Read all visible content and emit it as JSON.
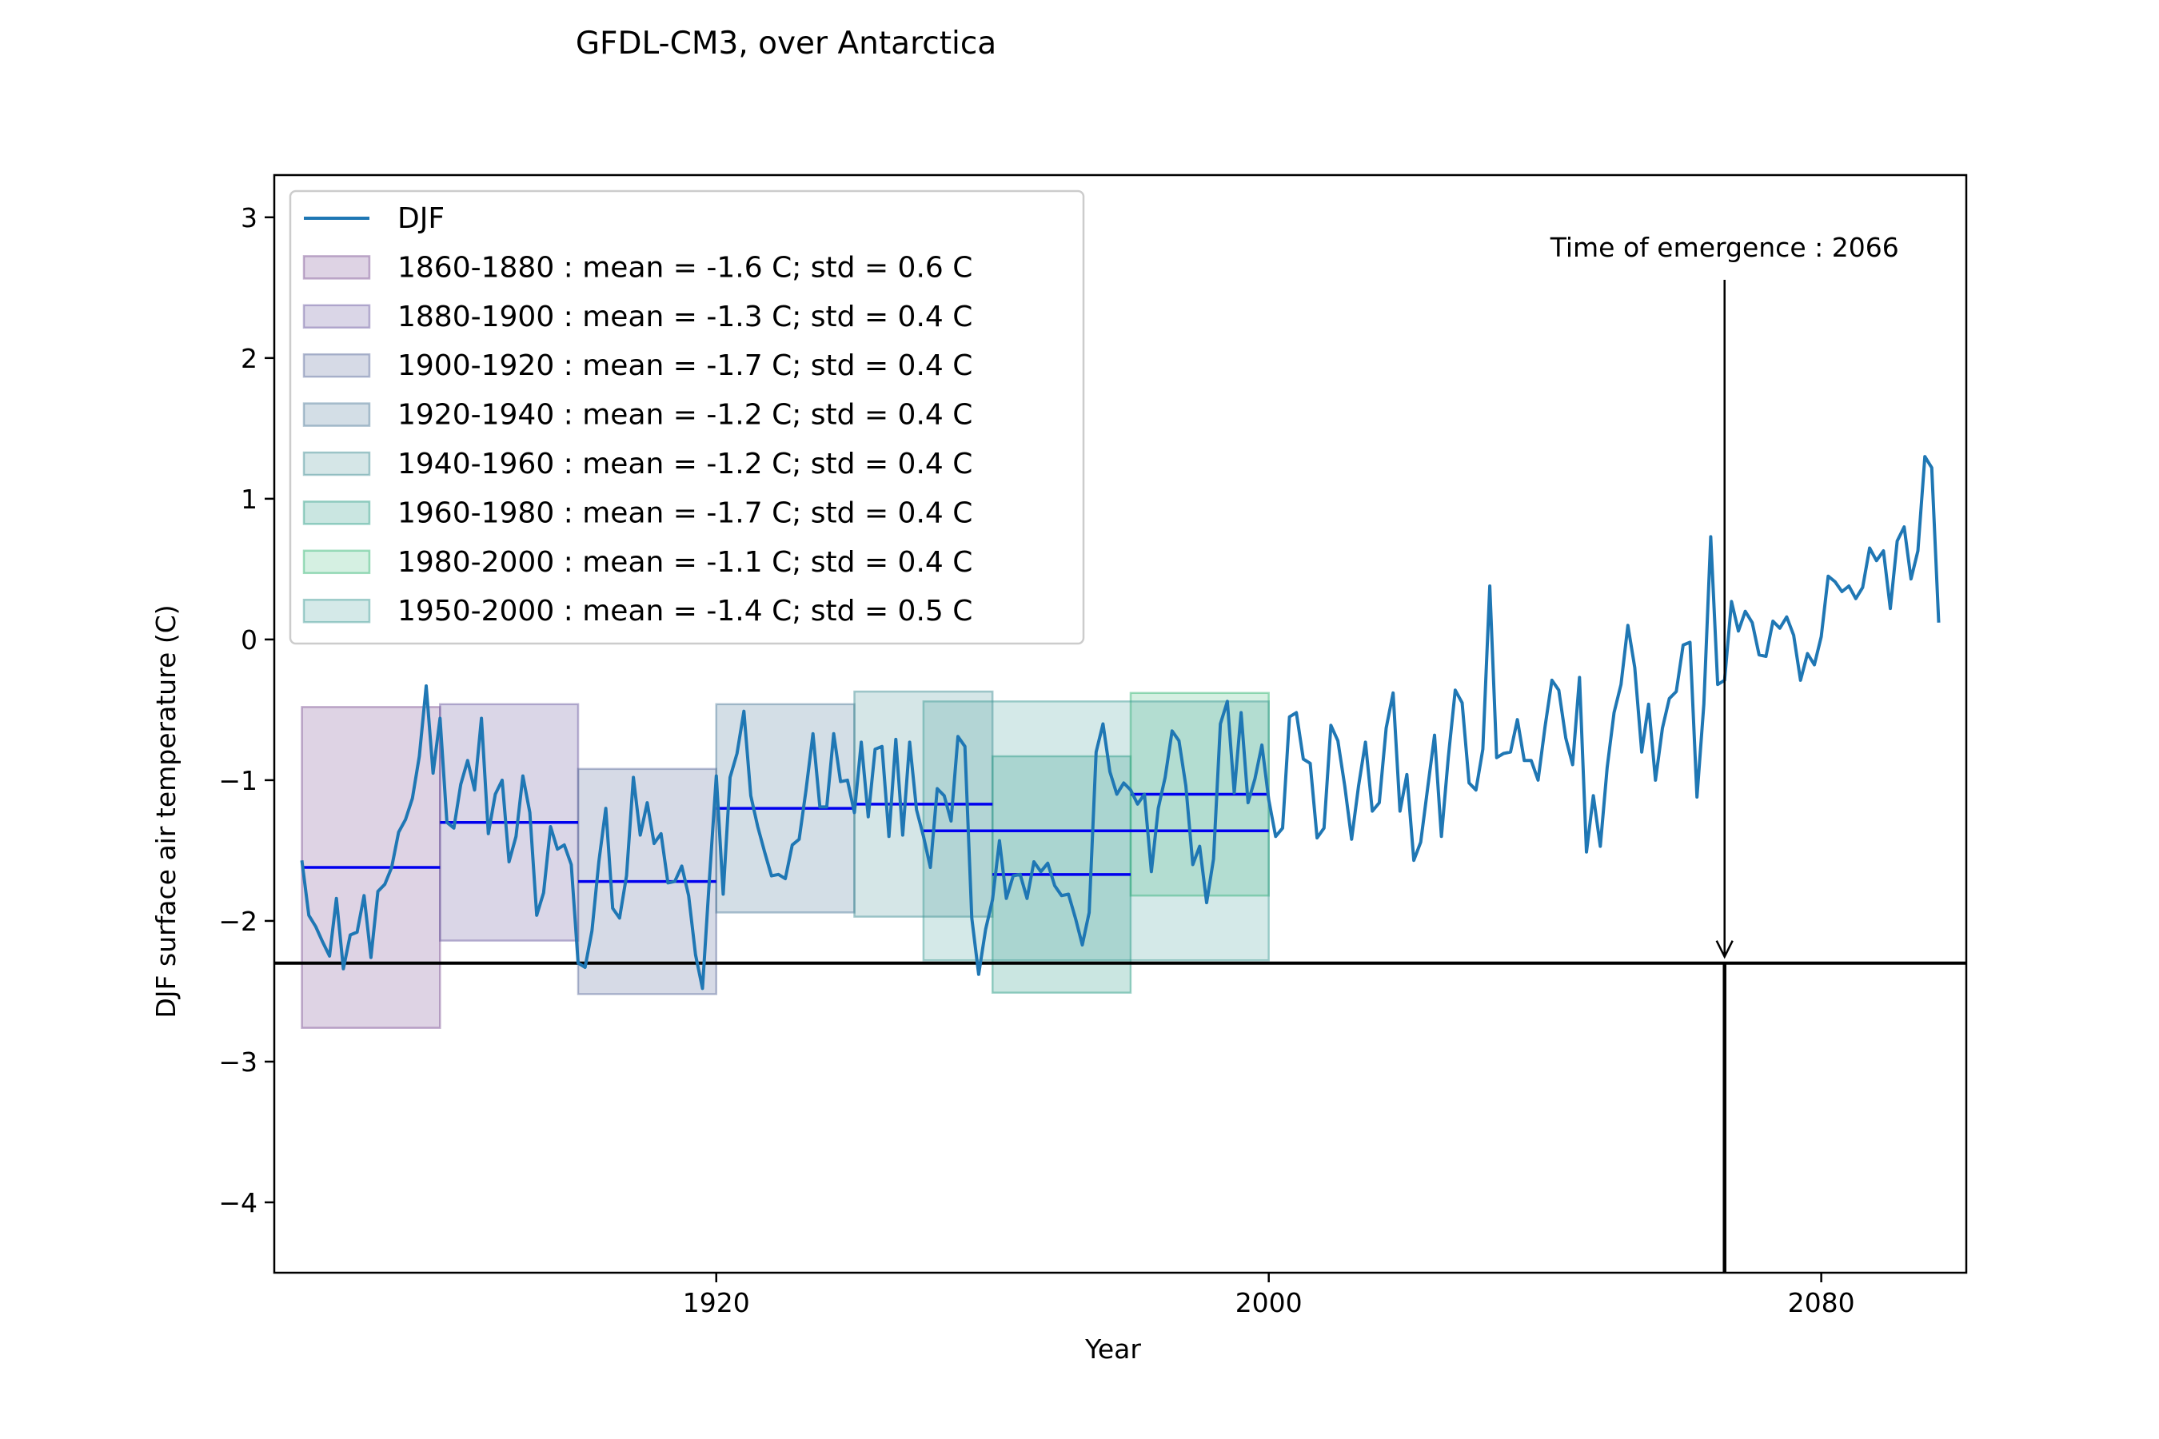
{
  "chart_data": {
    "type": "line",
    "title": "GFDL-CM3, over Antarctica",
    "xlabel": "Year",
    "ylabel": "DJF surface air temperature (C)",
    "xlim": [
      1856,
      2101
    ],
    "ylim": [
      -4.5,
      3.3
    ],
    "x_ticks": [
      1920,
      2000,
      2080
    ],
    "y_ticks": [
      -4,
      -3,
      -2,
      -1,
      0,
      1,
      2,
      3
    ],
    "y_tick_labels": [
      "−4",
      "−3",
      "−2",
      "−1",
      "0",
      "1",
      "2",
      "3"
    ],
    "legend_position": "upper-left",
    "series": [
      {
        "name": "DJF",
        "color": "#1f77b4",
        "x_start": 1860,
        "values": [
          -1.57,
          -1.96,
          -2.04,
          -2.15,
          -2.25,
          -1.84,
          -2.34,
          -2.1,
          -2.08,
          -1.82,
          -2.26,
          -1.79,
          -1.74,
          -1.62,
          -1.37,
          -1.28,
          -1.13,
          -0.83,
          -0.33,
          -0.95,
          -0.56,
          -1.3,
          -1.34,
          -1.03,
          -0.86,
          -1.07,
          -0.56,
          -1.38,
          -1.1,
          -1.0,
          -1.58,
          -1.4,
          -0.97,
          -1.23,
          -1.96,
          -1.8,
          -1.33,
          -1.49,
          -1.46,
          -1.6,
          -2.3,
          -2.33,
          -2.07,
          -1.58,
          -1.2,
          -1.91,
          -1.98,
          -1.68,
          -0.98,
          -1.39,
          -1.16,
          -1.45,
          -1.38,
          -1.73,
          -1.72,
          -1.61,
          -1.82,
          -2.24,
          -2.48,
          -1.71,
          -0.97,
          -1.81,
          -0.98,
          -0.81,
          -0.51,
          -1.11,
          -1.33,
          -1.51,
          -1.68,
          -1.67,
          -1.7,
          -1.46,
          -1.42,
          -1.07,
          -0.67,
          -1.19,
          -1.19,
          -0.67,
          -1.01,
          -1.0,
          -1.23,
          -0.73,
          -1.26,
          -0.78,
          -0.76,
          -1.4,
          -0.71,
          -1.39,
          -0.73,
          -1.21,
          -1.4,
          -1.62,
          -1.06,
          -1.11,
          -1.29,
          -0.69,
          -0.76,
          -1.98,
          -2.38,
          -2.06,
          -1.85,
          -1.43,
          -1.84,
          -1.68,
          -1.67,
          -1.84,
          -1.58,
          -1.65,
          -1.59,
          -1.75,
          -1.82,
          -1.81,
          -1.98,
          -2.17,
          -1.94,
          -0.8,
          -0.6,
          -0.94,
          -1.1,
          -1.02,
          -1.07,
          -1.17,
          -1.1,
          -1.65,
          -1.2,
          -0.98,
          -0.65,
          -0.72,
          -1.04,
          -1.6,
          -1.47,
          -1.87,
          -1.56,
          -0.6,
          -0.44,
          -1.09,
          -0.52,
          -1.16,
          -0.99,
          -0.75,
          -1.14,
          -1.4,
          -1.34,
          -0.55,
          -0.52,
          -0.85,
          -0.88,
          -1.41,
          -1.34,
          -0.61,
          -0.72,
          -1.04,
          -1.42,
          -1.04,
          -0.73,
          -1.22,
          -1.16,
          -0.63,
          -0.38,
          -1.22,
          -0.96,
          -1.57,
          -1.44,
          -1.06,
          -0.68,
          -1.4,
          -0.84,
          -0.36,
          -0.45,
          -1.02,
          -1.07,
          -0.78,
          0.38,
          -0.84,
          -0.81,
          -0.8,
          -0.57,
          -0.86,
          -0.86,
          -1.0,
          -0.62,
          -0.29,
          -0.36,
          -0.7,
          -0.89,
          -0.27,
          -1.51,
          -1.11,
          -1.47,
          -0.91,
          -0.52,
          -0.32,
          0.1,
          -0.2,
          -0.8,
          -0.46,
          -1.0,
          -0.63,
          -0.42,
          -0.37,
          -0.04,
          -0.02,
          -1.12,
          -0.46,
          0.73,
          -0.32,
          -0.29,
          0.27,
          0.06,
          0.2,
          0.12,
          -0.11,
          -0.12,
          0.13,
          0.08,
          0.16,
          0.03,
          -0.29,
          -0.1,
          -0.18,
          0.02,
          0.45,
          0.41,
          0.34,
          0.38,
          0.29,
          0.37,
          0.65,
          0.56,
          0.63,
          0.22,
          0.7,
          0.8,
          0.43,
          0.63,
          1.3,
          1.22,
          0.12
        ]
      }
    ],
    "periods": [
      {
        "label": "1860-1880 : mean = -1.6 C; std = 0.6 C",
        "start": 1860,
        "end": 1880,
        "mean": -1.62,
        "std": 0.57,
        "color": "#7b4f93",
        "opacity": 0.25
      },
      {
        "label": "1880-1900 : mean = -1.3 C; std = 0.4 C",
        "start": 1880,
        "end": 1900,
        "mean": -1.3,
        "std": 0.42,
        "color": "#6a5a9f",
        "opacity": 0.25
      },
      {
        "label": "1900-1920 : mean = -1.7 C; std = 0.4 C",
        "start": 1900,
        "end": 1920,
        "mean": -1.72,
        "std": 0.4,
        "color": "#5a6b9b",
        "opacity": 0.25
      },
      {
        "label": "1920-1940 : mean = -1.2 C; std = 0.4 C",
        "start": 1920,
        "end": 1940,
        "mean": -1.2,
        "std": 0.37,
        "color": "#4e7a9a",
        "opacity": 0.25
      },
      {
        "label": "1940-1960 : mean = -1.2 C; std = 0.4 C",
        "start": 1940,
        "end": 1960,
        "mean": -1.17,
        "std": 0.4,
        "color": "#3f8b92",
        "opacity": 0.22
      },
      {
        "label": "1960-1980 : mean = -1.7 C; std = 0.4 C",
        "start": 1960,
        "end": 1980,
        "mean": -1.67,
        "std": 0.42,
        "color": "#2a9d86",
        "opacity": 0.25
      },
      {
        "label": "1980-2000 : mean = -1.1 C; std = 0.4 C",
        "start": 1980,
        "end": 2000,
        "mean": -1.1,
        "std": 0.36,
        "color": "#2db36e",
        "opacity": 0.2
      },
      {
        "label": "1950-2000 : mean = -1.4 C; std = 0.5 C",
        "start": 1950,
        "end": 2000,
        "mean": -1.36,
        "std": 0.46,
        "color": "#3b9a94",
        "opacity": 0.22
      }
    ],
    "threshold": -2.3,
    "emergence": {
      "year": 2066,
      "label": "Time of emergence : 2066"
    }
  }
}
